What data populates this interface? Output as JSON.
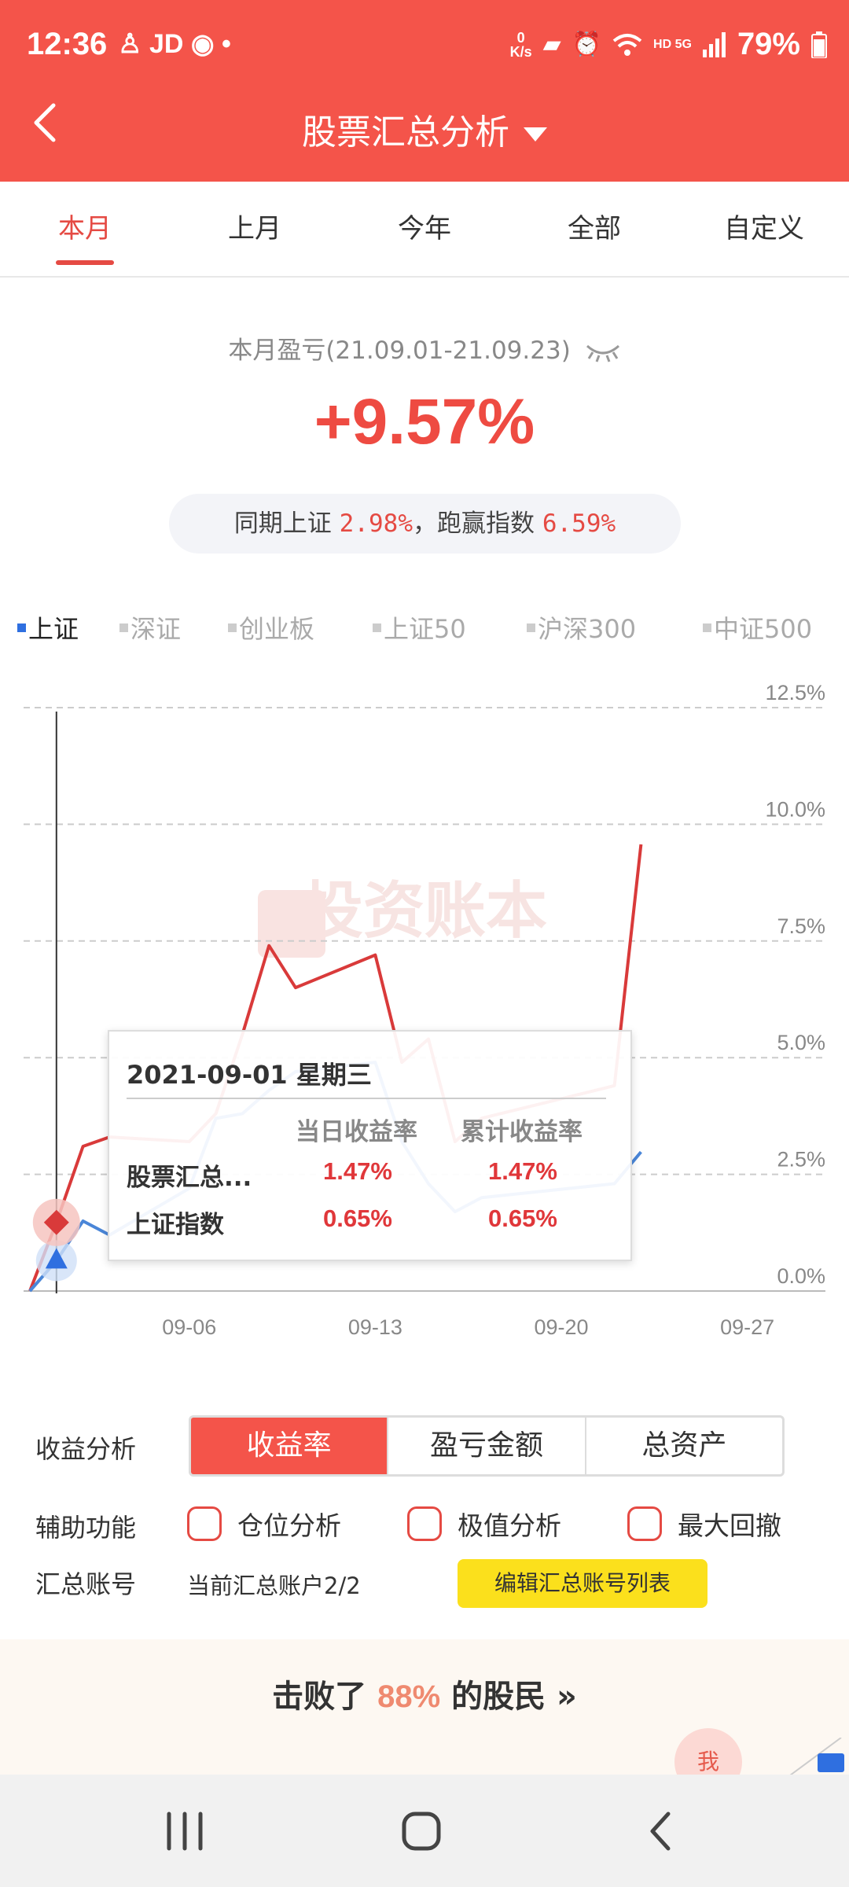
{
  "status_bar": {
    "time": "12:36",
    "left_icons": [
      "person-icon",
      "JD",
      "weibo-icon",
      "•"
    ],
    "speed_top": "0",
    "speed_bottom": "K/s",
    "battery": "79%"
  },
  "nav": {
    "title": "股票汇总分析"
  },
  "tabs": [
    {
      "label": "本月",
      "active": true
    },
    {
      "label": "上月",
      "active": false
    },
    {
      "label": "今年",
      "active": false
    },
    {
      "label": "全部",
      "active": false
    },
    {
      "label": "自定义",
      "active": false
    }
  ],
  "summary": {
    "period_label": "本月盈亏(21.09.01-21.09.23)",
    "profit_pct": "+9.57%",
    "compare_prefix": "同期上证",
    "compare_index": "2.98%",
    "compare_mid": "，跑赢指数",
    "compare_beat": "6.59%"
  },
  "index_tabs": [
    "上证",
    "深证",
    "创业板",
    "上证50",
    "沪深300",
    "中证500"
  ],
  "chart_data": {
    "type": "line",
    "x": [
      "2021-09-01",
      "2021-09-02",
      "2021-09-03",
      "2021-09-06",
      "2021-09-07",
      "2021-09-08",
      "2021-09-09",
      "2021-09-10",
      "2021-09-13",
      "2021-09-14",
      "2021-09-15",
      "2021-09-16",
      "2021-09-17",
      "2021-09-22",
      "2021-09-23"
    ],
    "x_ticks": [
      "09-06",
      "09-13",
      "09-20",
      "09-27"
    ],
    "y_ticks": [
      "12.5%",
      "10.0%",
      "7.5%",
      "5.0%",
      "2.5%",
      "0.0%"
    ],
    "ylim": [
      0,
      12.5
    ],
    "series": [
      {
        "name": "股票汇总",
        "color": "#d93a3a",
        "points": [
          [
            "2021-08-31",
            0
          ],
          [
            "2021-09-01",
            1.47
          ],
          [
            "2021-09-02",
            3.1
          ],
          [
            "2021-09-03",
            3.3
          ],
          [
            "2021-09-06",
            3.2
          ],
          [
            "2021-09-07",
            3.8
          ],
          [
            "2021-09-08",
            5.5
          ],
          [
            "2021-09-09",
            7.4
          ],
          [
            "2021-09-10",
            6.5
          ],
          [
            "2021-09-13",
            7.2
          ],
          [
            "2021-09-14",
            4.9
          ],
          [
            "2021-09-15",
            5.4
          ],
          [
            "2021-09-16",
            3.2
          ],
          [
            "2021-09-17",
            3.7
          ],
          [
            "2021-09-22",
            4.4
          ],
          [
            "2021-09-23",
            9.57
          ]
        ]
      },
      {
        "name": "上证指数",
        "color": "#4a86d8",
        "points": [
          [
            "2021-08-31",
            0
          ],
          [
            "2021-09-01",
            0.65
          ],
          [
            "2021-09-02",
            1.5
          ],
          [
            "2021-09-03",
            1.2
          ],
          [
            "2021-09-06",
            2.2
          ],
          [
            "2021-09-07",
            3.7
          ],
          [
            "2021-09-08",
            3.8
          ],
          [
            "2021-09-09",
            4.3
          ],
          [
            "2021-09-10",
            4.7
          ],
          [
            "2021-09-13",
            4.9
          ],
          [
            "2021-09-14",
            3.2
          ],
          [
            "2021-09-15",
            2.3
          ],
          [
            "2021-09-16",
            1.7
          ],
          [
            "2021-09-17",
            2.0
          ],
          [
            "2021-09-22",
            2.3
          ],
          [
            "2021-09-23",
            2.98
          ]
        ]
      }
    ],
    "watermark": "投资账本",
    "cursor_date": "2021-09-01"
  },
  "tooltip": {
    "date": "2021-09-01 星期三",
    "col1": "当日收益率",
    "col2": "累计收益率",
    "rows": [
      {
        "name": "股票汇总...",
        "daily": "1.47%",
        "cumulative": "1.47%"
      },
      {
        "name": "上证指数",
        "daily": "0.65%",
        "cumulative": "0.65%"
      }
    ]
  },
  "controls": {
    "profit_label": "收益分析",
    "segments": [
      "收益率",
      "盈亏金额",
      "总资产"
    ],
    "aux_label": "辅助功能",
    "checks": [
      "仓位分析",
      "极值分析",
      "最大回撤"
    ],
    "account_label": "汇总账号",
    "account_value": "当前汇总账户2/2",
    "edit_button": "编辑汇总账号列表"
  },
  "beat": {
    "prefix": "击败了",
    "pct": "88%",
    "suffix": "的股民",
    "arrow": "»",
    "me": "我"
  }
}
